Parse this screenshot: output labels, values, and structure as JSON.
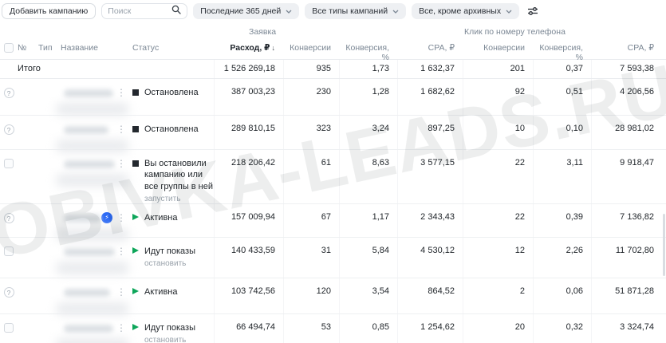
{
  "toolbar": {
    "add_button": "Добавить кампанию",
    "search_placeholder": "Поиск",
    "filters": [
      "Последние 365 дней",
      "Все типы кампаний",
      "Все, кроме архивных"
    ]
  },
  "table": {
    "groups": {
      "zayavka": "Заявка",
      "phone_click": "Клик по номеру телефона"
    },
    "columns": {
      "num": "№",
      "type": "Тип",
      "name": "Название",
      "status": "Статус",
      "expense": "Расход, ₽",
      "conversions": "Конверсии",
      "conversion_pct": "Конверсия, %",
      "cpa": "CPA, ₽"
    },
    "sort_indicator": "↓",
    "totals": {
      "label": "Итого",
      "expense": "1 526 269,18",
      "conv1": "935",
      "pct1": "1,73",
      "cpa1": "1 632,37",
      "conv2": "201",
      "pct2": "0,37",
      "cpa2": "7 593,38"
    },
    "rows": [
      {
        "left_control": "help",
        "status": "Остановлена",
        "status_kind": "stopped",
        "action_link": "",
        "boost": false,
        "expense": "387 003,23",
        "conv1": "230",
        "pct1": "1,28",
        "cpa1": "1 682,62",
        "conv2": "92",
        "pct2": "0,51",
        "cpa2": "4 206,56"
      },
      {
        "left_control": "help",
        "status": "Остановлена",
        "status_kind": "stopped",
        "action_link": "",
        "boost": false,
        "expense": "289 810,15",
        "conv1": "323",
        "pct1": "3,24",
        "cpa1": "897,25",
        "conv2": "10",
        "pct2": "0,10",
        "cpa2": "28 981,02"
      },
      {
        "left_control": "checkbox",
        "status": "Вы остановили кампанию или все группы в ней",
        "status_kind": "stopped",
        "action_link": "запустить",
        "boost": false,
        "expense": "218 206,42",
        "conv1": "61",
        "pct1": "8,63",
        "cpa1": "3 577,15",
        "conv2": "22",
        "pct2": "3,11",
        "cpa2": "9 918,47"
      },
      {
        "left_control": "help",
        "status": "Активна",
        "status_kind": "play",
        "action_link": "",
        "boost": true,
        "expense": "157 009,94",
        "conv1": "67",
        "pct1": "1,17",
        "cpa1": "2 343,43",
        "conv2": "22",
        "pct2": "0,39",
        "cpa2": "7 136,82"
      },
      {
        "left_control": "checkbox",
        "status": "Идут показы",
        "status_kind": "play",
        "action_link": "остановить",
        "boost": false,
        "expense": "140 433,59",
        "conv1": "31",
        "pct1": "5,84",
        "cpa1": "4 530,12",
        "conv2": "12",
        "pct2": "2,26",
        "cpa2": "11 702,80"
      },
      {
        "left_control": "help",
        "status": "Активна",
        "status_kind": "play",
        "action_link": "",
        "boost": false,
        "expense": "103 742,56",
        "conv1": "120",
        "pct1": "3,54",
        "cpa1": "864,52",
        "conv2": "2",
        "pct2": "0,06",
        "cpa2": "51 871,28"
      },
      {
        "left_control": "checkbox",
        "status": "Идут показы",
        "status_kind": "play",
        "action_link": "остановить",
        "boost": false,
        "expense": "66 494,74",
        "conv1": "53",
        "pct1": "0,85",
        "cpa1": "1 254,62",
        "conv2": "20",
        "pct2": "0,32",
        "cpa2": "3 324,74"
      }
    ]
  },
  "watermark": "OBIVKA-LEADS.RU"
}
